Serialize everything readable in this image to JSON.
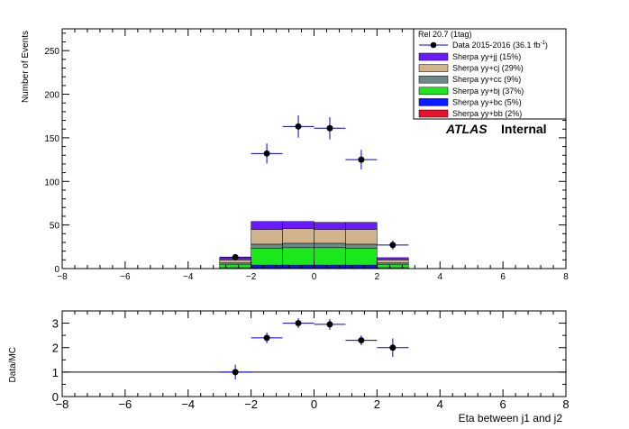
{
  "chart_data": [
    {
      "type": "bar",
      "subtype": "stacked-histogram-with-data-points",
      "ylabel": "Number of Events",
      "xlim": [
        -8,
        8
      ],
      "ylim": [
        0,
        275
      ],
      "yticks": [
        0,
        50,
        100,
        150,
        200,
        250
      ],
      "xticks": [
        -8,
        -6,
        -4,
        -2,
        0,
        2,
        4,
        6,
        8
      ],
      "bins": [
        [
          -3,
          -2
        ],
        [
          -2,
          -1
        ],
        [
          -1,
          0
        ],
        [
          0,
          1
        ],
        [
          1,
          2
        ],
        [
          2,
          3
        ]
      ],
      "stack": [
        {
          "name": "Sherpa yy+bb (2%)",
          "color": "#e8112d",
          "values": [
            0.5,
            1,
            1,
            1,
            1,
            0.5
          ]
        },
        {
          "name": "Sherpa yy+bc (5%)",
          "color": "#0a1aff",
          "values": [
            0.5,
            3,
            3,
            3,
            3,
            0.5
          ]
        },
        {
          "name": "Sherpa yy+bj (37%)",
          "color": "#1ae81a",
          "values": [
            4,
            19,
            20,
            20,
            19,
            4
          ]
        },
        {
          "name": "Sherpa yy+cc (9%)",
          "color": "#6a8a8a",
          "values": [
            1.5,
            5,
            5,
            5,
            5,
            1.5
          ]
        },
        {
          "name": "Sherpa yy+cj (29%)",
          "color": "#d2b48c",
          "values": [
            3.5,
            17,
            17,
            16,
            17,
            3.5
          ]
        },
        {
          "name": "Sherpa yy+jj (15%)",
          "color": "#6a1aff",
          "values": [
            2.5,
            9,
            8,
            8,
            8,
            2.5
          ]
        }
      ],
      "data": {
        "name": "Data 2015-2016 (36.1 fb",
        "name_sup": "-1",
        "name_close": ")",
        "x": [
          -2.5,
          -1.5,
          -0.5,
          0.5,
          1.5,
          2.5
        ],
        "y": [
          13,
          132,
          163,
          161,
          125,
          27
        ],
        "yerr": [
          3.6,
          11.5,
          12.8,
          12.7,
          11.2,
          5.2
        ]
      },
      "legend_header": "Rel 20.7 (1tag)",
      "legend_placement": "top-right",
      "label_atlas": "ATLAS",
      "label_status": "Internal"
    },
    {
      "type": "scatter",
      "xlabel": "Eta between j1 and j2",
      "ylabel": "Data/MC",
      "xlim": [
        -8,
        8
      ],
      "ylim": [
        0,
        3.5
      ],
      "yticks": [
        0,
        1,
        2,
        3
      ],
      "xticks": [
        -8,
        -6,
        -4,
        -2,
        0,
        2,
        4,
        6,
        8
      ],
      "reference_line": 1,
      "x": [
        -2.5,
        -1.5,
        -0.5,
        0.5,
        1.5,
        2.5
      ],
      "y": [
        1.0,
        2.4,
        3.0,
        2.95,
        2.3,
        2.0
      ],
      "yerr": [
        0.3,
        0.22,
        0.2,
        0.22,
        0.2,
        0.38
      ]
    }
  ]
}
